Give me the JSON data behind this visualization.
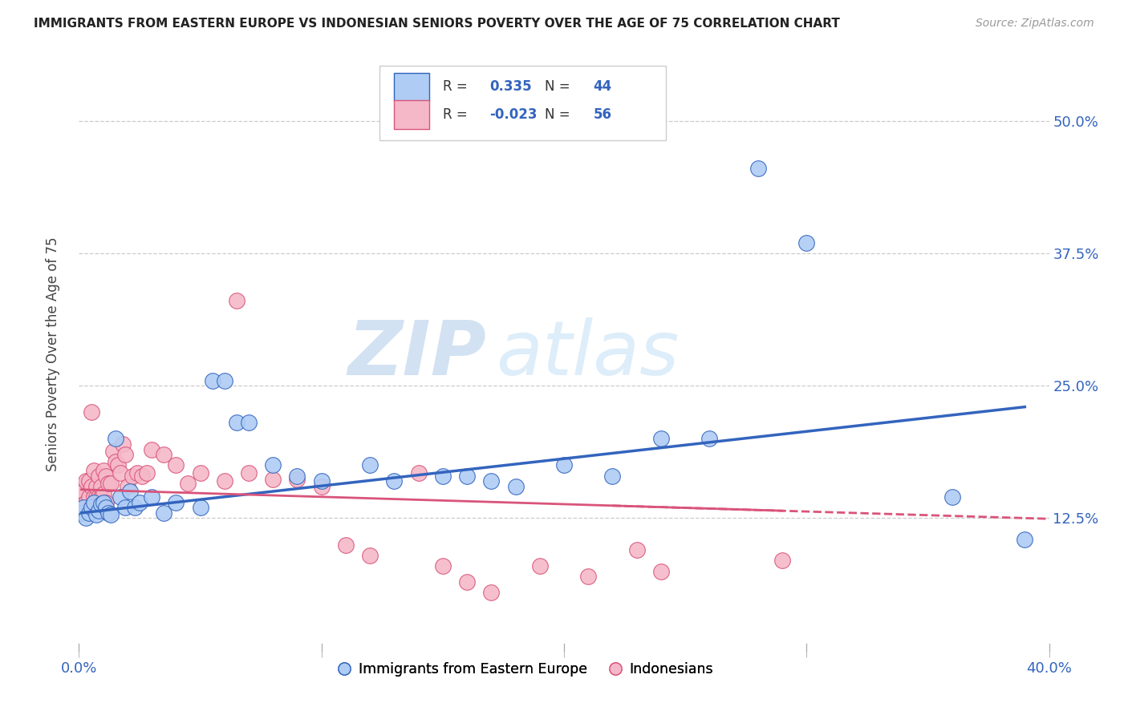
{
  "title": "IMMIGRANTS FROM EASTERN EUROPE VS INDONESIAN SENIORS POVERTY OVER THE AGE OF 75 CORRELATION CHART",
  "source": "Source: ZipAtlas.com",
  "ylabel": "Seniors Poverty Over the Age of 75",
  "ytick_labels": [
    "12.5%",
    "25.0%",
    "37.5%",
    "50.0%"
  ],
  "ytick_values": [
    0.125,
    0.25,
    0.375,
    0.5
  ],
  "xlim": [
    0.0,
    0.4
  ],
  "ylim": [
    0.0,
    0.56
  ],
  "blue_R": 0.335,
  "blue_N": 44,
  "pink_R": -0.023,
  "pink_N": 56,
  "blue_color": "#aeccf4",
  "pink_color": "#f5b8c8",
  "blue_line_color": "#3364be",
  "pink_line_color": "#d9547a",
  "watermark_zip": "ZIP",
  "watermark_atlas": "atlas",
  "legend_label_blue": "Immigrants from Eastern Europe",
  "legend_label_pink": "Indonesians",
  "blue_x": [
    0.001,
    0.002,
    0.003,
    0.004,
    0.005,
    0.006,
    0.007,
    0.008,
    0.009,
    0.01,
    0.011,
    0.012,
    0.013,
    0.015,
    0.017,
    0.019,
    0.021,
    0.023,
    0.025,
    0.03,
    0.035,
    0.04,
    0.05,
    0.055,
    0.06,
    0.065,
    0.07,
    0.08,
    0.09,
    0.1,
    0.12,
    0.13,
    0.15,
    0.16,
    0.17,
    0.18,
    0.2,
    0.22,
    0.24,
    0.26,
    0.28,
    0.3,
    0.36,
    0.39
  ],
  "blue_y": [
    0.13,
    0.135,
    0.125,
    0.13,
    0.135,
    0.14,
    0.128,
    0.132,
    0.138,
    0.14,
    0.135,
    0.13,
    0.128,
    0.2,
    0.145,
    0.135,
    0.15,
    0.135,
    0.14,
    0.145,
    0.13,
    0.14,
    0.135,
    0.255,
    0.255,
    0.215,
    0.215,
    0.175,
    0.165,
    0.16,
    0.175,
    0.16,
    0.165,
    0.165,
    0.16,
    0.155,
    0.175,
    0.165,
    0.2,
    0.2,
    0.455,
    0.385,
    0.145,
    0.105
  ],
  "pink_x": [
    0.001,
    0.002,
    0.002,
    0.003,
    0.003,
    0.004,
    0.004,
    0.005,
    0.005,
    0.006,
    0.006,
    0.007,
    0.007,
    0.008,
    0.008,
    0.009,
    0.009,
    0.01,
    0.01,
    0.011,
    0.011,
    0.012,
    0.013,
    0.014,
    0.015,
    0.016,
    0.017,
    0.018,
    0.019,
    0.02,
    0.022,
    0.024,
    0.026,
    0.028,
    0.03,
    0.035,
    0.04,
    0.045,
    0.05,
    0.06,
    0.065,
    0.07,
    0.08,
    0.09,
    0.1,
    0.11,
    0.12,
    0.14,
    0.15,
    0.16,
    0.17,
    0.19,
    0.21,
    0.23,
    0.24,
    0.29
  ],
  "pink_y": [
    0.155,
    0.145,
    0.15,
    0.14,
    0.16,
    0.145,
    0.16,
    0.155,
    0.225,
    0.145,
    0.17,
    0.145,
    0.155,
    0.145,
    0.165,
    0.145,
    0.155,
    0.148,
    0.17,
    0.165,
    0.14,
    0.158,
    0.158,
    0.188,
    0.178,
    0.175,
    0.168,
    0.195,
    0.185,
    0.155,
    0.165,
    0.168,
    0.165,
    0.168,
    0.19,
    0.185,
    0.175,
    0.158,
    0.168,
    0.16,
    0.33,
    0.168,
    0.162,
    0.162,
    0.155,
    0.1,
    0.09,
    0.168,
    0.08,
    0.065,
    0.055,
    0.08,
    0.07,
    0.095,
    0.075,
    0.085
  ],
  "blue_trend_x": [
    0.001,
    0.39
  ],
  "blue_trend_y": [
    0.13,
    0.23
  ],
  "pink_trend_x": [
    0.001,
    0.29
  ],
  "pink_trend_y": [
    0.152,
    0.132
  ]
}
